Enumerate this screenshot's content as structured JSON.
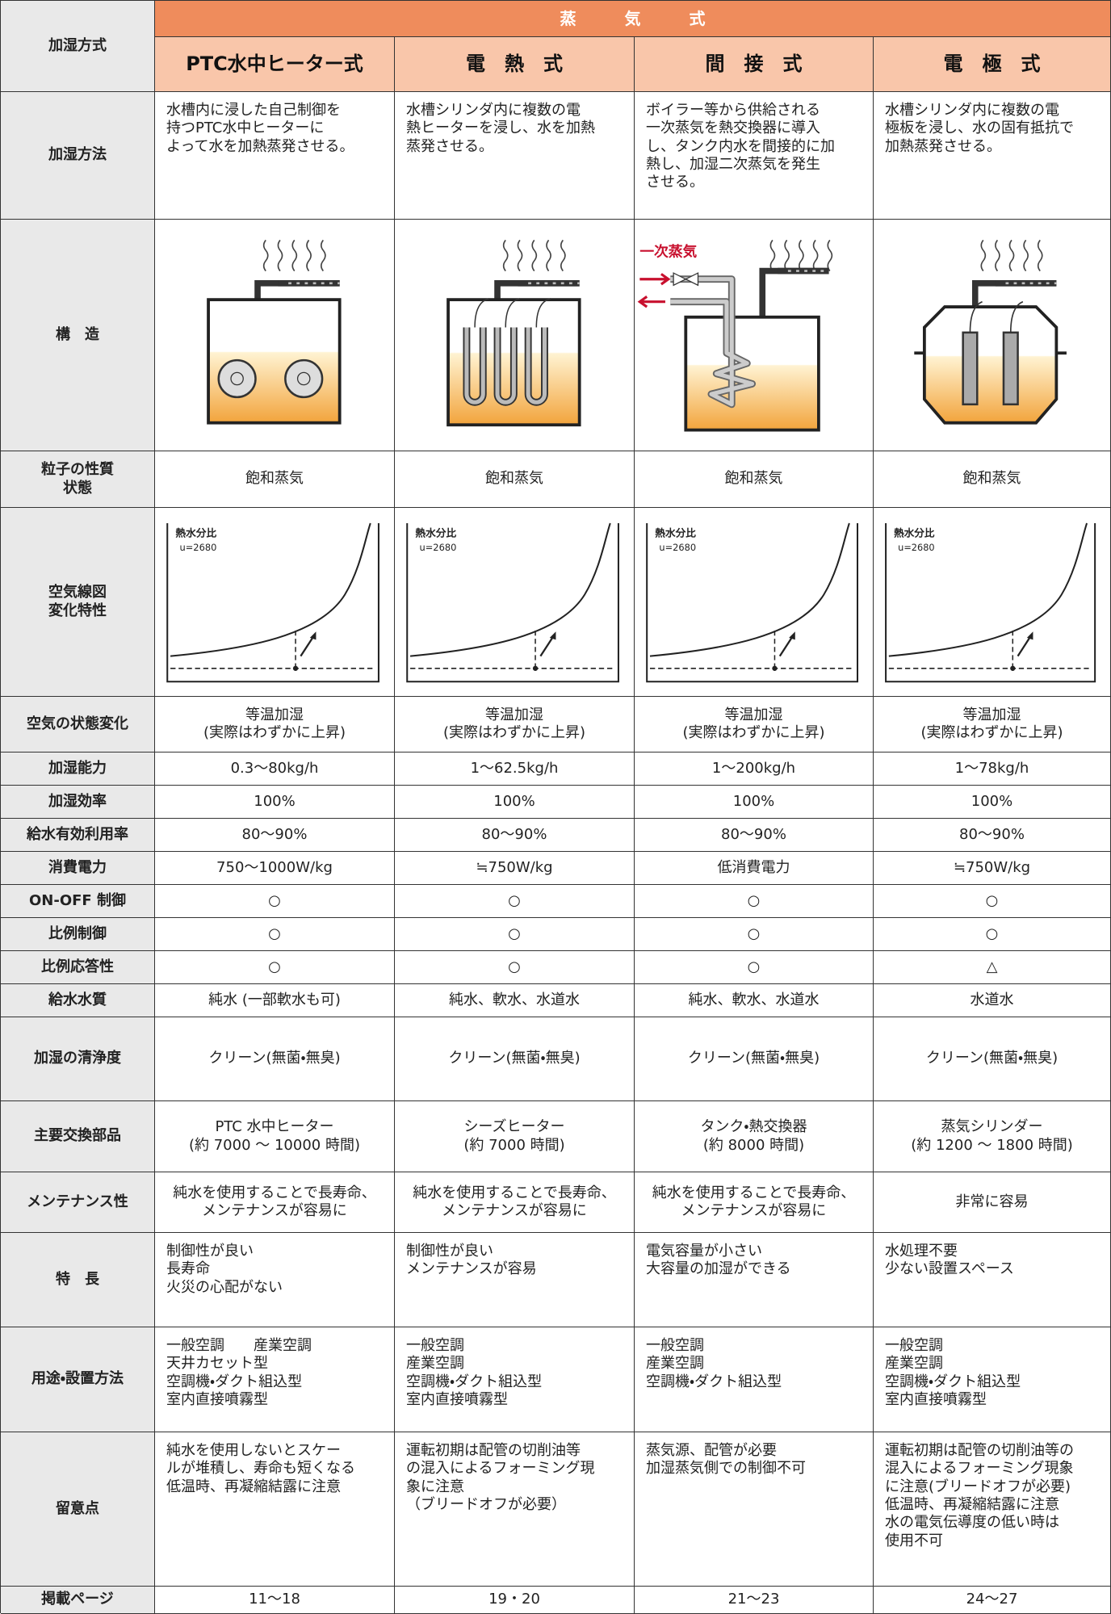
{
  "header": {
    "row_label": "加湿方式",
    "group": "蒸　　　気　　　式",
    "columns": [
      "PTC水中ヒーター式",
      "電　熱　式",
      "間　接　式",
      "電　極　式"
    ]
  },
  "rows": [
    {
      "label": "加湿方法",
      "cells": [
        "水槽内に浸した自己制御を\n持つPTC水中ヒーターに\nよって水を加熱蒸発させる。",
        "水槽シリンダ内に複数の電\n熱ヒーターを浸し、水を加熱\n蒸発させる。",
        "ボイラー等から供給される\n一次蒸気を熱交換器に導入\nし、タンク内水を間接的に加\n熱し、加湿二次蒸気を発生\nさせる。",
        "水槽シリンダ内に複数の電\n極板を浸し、水の固有抵抗で\n加熱蒸発させる。"
      ]
    },
    {
      "label": "構　造",
      "annotation": "一次蒸気"
    },
    {
      "label": "粒子の性質\n状態",
      "cells": [
        "飽和蒸気",
        "飽和蒸気",
        "飽和蒸気",
        "飽和蒸気"
      ]
    },
    {
      "label": "空気線図\n変化特性",
      "chart_label": "熱水分比",
      "chart_u": "u=2680"
    },
    {
      "label": "空気の状態変化",
      "cells": [
        "等温加湿\n(実際はわずかに上昇)",
        "等温加湿\n(実際はわずかに上昇)",
        "等温加湿\n(実際はわずかに上昇)",
        "等温加湿\n(実際はわずかに上昇)"
      ]
    },
    {
      "label": "加湿能力",
      "cells": [
        "0.3〜80kg/h",
        "1〜62.5kg/h",
        "1〜200kg/h",
        "1〜78kg/h"
      ]
    },
    {
      "label": "加湿効率",
      "cells": [
        "100%",
        "100%",
        "100%",
        "100%"
      ]
    },
    {
      "label": "給水有効利用率",
      "cells": [
        "80〜90%",
        "80〜90%",
        "80〜90%",
        "80〜90%"
      ]
    },
    {
      "label": "消費電力",
      "cells": [
        "750〜1000W/kg",
        "≒750W/kg",
        "低消費電力",
        "≒750W/kg"
      ]
    },
    {
      "label": "ON-OFF 制御",
      "cells": [
        "○",
        "○",
        "○",
        "○"
      ]
    },
    {
      "label": "比例制御",
      "cells": [
        "○",
        "○",
        "○",
        "○"
      ]
    },
    {
      "label": "比例応答性",
      "cells": [
        "○",
        "○",
        "○",
        "△"
      ]
    },
    {
      "label": "給水水質",
      "cells": [
        "純水 (一部軟水も可)",
        "純水、軟水、水道水",
        "純水、軟水、水道水",
        "水道水"
      ]
    },
    {
      "label": "加湿の清浄度",
      "cells": [
        "クリーン(無菌・無臭)",
        "クリーン(無菌・無臭)",
        "クリーン(無菌・無臭)",
        "クリーン(無菌・無臭)"
      ]
    },
    {
      "label": "主要交換部品",
      "cells": [
        "PTC 水中ヒーター\n(約 7000 〜 10000 時間)",
        "シーズヒーター\n(約 7000 時間)",
        "タンク・熱交換器\n(約 8000 時間)",
        "蒸気シリンダー\n(約 1200 〜 1800 時間)"
      ]
    },
    {
      "label": "メンテナンス性",
      "cells": [
        "純水を使用することで長寿命、\nメンテナンスが容易に",
        "純水を使用することで長寿命、\nメンテナンスが容易に",
        "純水を使用することで長寿命、\nメンテナンスが容易に",
        "非常に容易"
      ]
    },
    {
      "label": "特　長",
      "cells": [
        "制御性が良い\n長寿命\n火災の心配がない",
        "制御性が良い\nメンテナンスが容易",
        "電気容量が小さい\n大容量の加湿ができる",
        "水処理不要\n少ない設置スペース"
      ]
    },
    {
      "label": "用途・設置方法",
      "cells": [
        "一般空調　　産業空調\n天井カセット型\n空調機・ダクト組込型\n室内直接噴霧型",
        "一般空調\n産業空調\n空調機・ダクト組込型\n室内直接噴霧型",
        "一般空調\n産業空調\n空調機・ダクト組込型",
        "一般空調\n産業空調\n空調機・ダクト組込型\n室内直接噴霧型"
      ]
    },
    {
      "label": "留意点",
      "cells": [
        "純水を使用しないとスケー\nルが堆積し、寿命も短くなる\n低温時、再凝縮結露に注意",
        "運転初期は配管の切削油等\nの混入によるフォーミング現\n象に注意\n（ブリードオフが必要）",
        "蒸気源、配管が必要\n加湿蒸気側での制御不可",
        "運転初期は配管の切削油等の\n混入によるフォーミング現象\nに注意(ブリードオフが必要)\n低温時、再凝縮結露に注意\n水の電気伝導度の低い時は\n使用不可"
      ]
    },
    {
      "label": "掲載ページ",
      "cells": [
        "11〜18",
        "19・20",
        "21〜23",
        "24〜27"
      ]
    }
  ]
}
